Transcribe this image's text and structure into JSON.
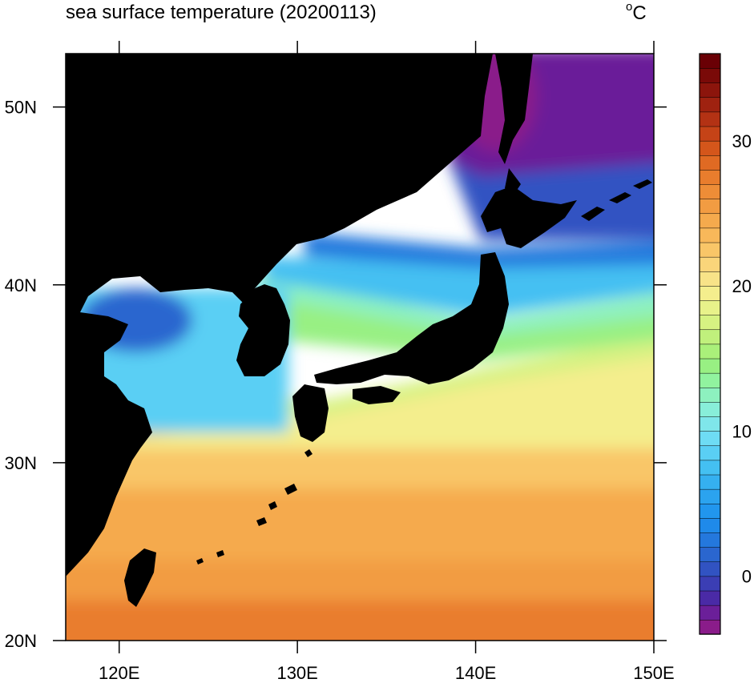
{
  "title": "sea surface temperature (20200113)",
  "units": {
    "degree": "o",
    "letter": "C"
  },
  "map": {
    "projection": "cylindrical equidistant",
    "lon_range": [
      117,
      150
    ],
    "lat_range": [
      20,
      53
    ],
    "land_color": "#000000",
    "lon_ticks": [
      {
        "value": 120,
        "label": "120E"
      },
      {
        "value": 130,
        "label": "130E"
      },
      {
        "value": 140,
        "label": "140E"
      },
      {
        "value": 150,
        "label": "150E"
      }
    ],
    "lat_ticks": [
      {
        "value": 20,
        "label": "20N"
      },
      {
        "value": 30,
        "label": "30N"
      },
      {
        "value": 40,
        "label": "40N"
      },
      {
        "value": 50,
        "label": "50N"
      }
    ]
  },
  "colorbar": {
    "range": [
      -4,
      36
    ],
    "ticks": [
      {
        "value": 0,
        "label": "0"
      },
      {
        "value": 10,
        "label": "10"
      },
      {
        "value": 20,
        "label": "20"
      },
      {
        "value": 30,
        "label": "30"
      }
    ],
    "colors": [
      "#8a1c8a",
      "#6b1f99",
      "#4a2aa6",
      "#3b3eb4",
      "#3153c2",
      "#2a66cf",
      "#2478dd",
      "#1f8aea",
      "#2196ee",
      "#2ba3ef",
      "#35b0f0",
      "#44c0f2",
      "#5acff4",
      "#6edcf4",
      "#7fe6ea",
      "#88eed9",
      "#8df1bf",
      "#91f39f",
      "#98f083",
      "#aaf07a",
      "#c0f07c",
      "#d6f282",
      "#e8f28a",
      "#f4ee8d",
      "#f8e388",
      "#fad57a",
      "#f9c668",
      "#f8b85a",
      "#f5aa4d",
      "#f29c42",
      "#ee8d37",
      "#e97d2d",
      "#e06a23",
      "#d4561b",
      "#c54317",
      "#b33214",
      "#9f2210",
      "#8c150c",
      "#7a0a08",
      "#6a0005"
    ]
  }
}
